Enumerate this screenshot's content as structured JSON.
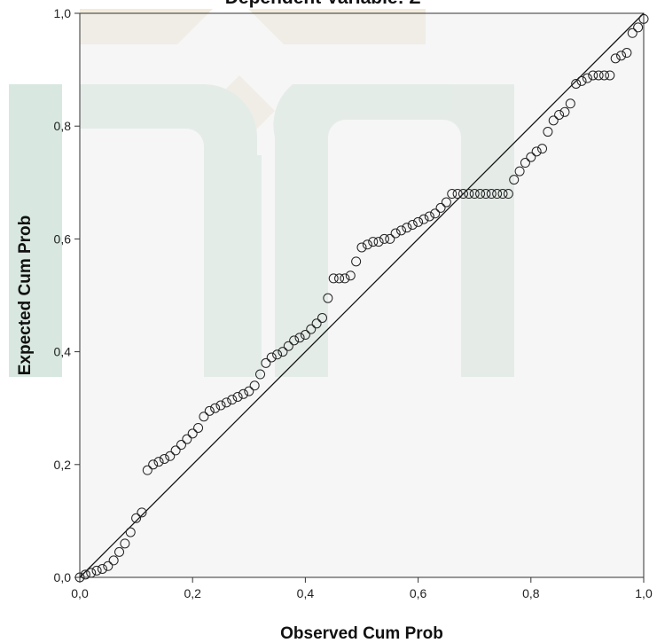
{
  "chart_data": {
    "type": "scatter",
    "title": "Dependent Variable: Z",
    "xlabel": "Observed Cum Prob",
    "ylabel": "Expected Cum Prob",
    "xlim": [
      0,
      1
    ],
    "ylim": [
      0,
      1
    ],
    "x_ticks": [
      "0,0",
      "0,2",
      "0,4",
      "0,6",
      "0,8",
      "1,0"
    ],
    "y_ticks": [
      "0,0",
      "0,2",
      "0,4",
      "0,6",
      "0,8",
      "1,0"
    ],
    "grid": false,
    "legend": "none",
    "reference_line": {
      "from": [
        0,
        0
      ],
      "to": [
        1,
        1
      ]
    },
    "series": [
      {
        "x": [
          0.0,
          0.01,
          0.02,
          0.03,
          0.04,
          0.05,
          0.06,
          0.07,
          0.08,
          0.09,
          0.1,
          0.11,
          0.12,
          0.13,
          0.14,
          0.15,
          0.16,
          0.17,
          0.18,
          0.19,
          0.2,
          0.21,
          0.22,
          0.23,
          0.24,
          0.25,
          0.26,
          0.27,
          0.28,
          0.29,
          0.3,
          0.31,
          0.32,
          0.33,
          0.34,
          0.35,
          0.36,
          0.37,
          0.38,
          0.39,
          0.4,
          0.41,
          0.42,
          0.43,
          0.44,
          0.45,
          0.46,
          0.47,
          0.48,
          0.49,
          0.5,
          0.51,
          0.52,
          0.53,
          0.54,
          0.55,
          0.56,
          0.57,
          0.58,
          0.59,
          0.6,
          0.61,
          0.62,
          0.63,
          0.64,
          0.65,
          0.66,
          0.67,
          0.68,
          0.69,
          0.7,
          0.71,
          0.72,
          0.73,
          0.74,
          0.75,
          0.76,
          0.77,
          0.78,
          0.79,
          0.8,
          0.81,
          0.82,
          0.83,
          0.84,
          0.85,
          0.86,
          0.87,
          0.88,
          0.89,
          0.9,
          0.91,
          0.92,
          0.93,
          0.94,
          0.95,
          0.96,
          0.97,
          0.98,
          0.99,
          1.0
        ],
        "y": [
          0.0,
          0.005,
          0.008,
          0.012,
          0.015,
          0.02,
          0.03,
          0.045,
          0.06,
          0.08,
          0.105,
          0.115,
          0.19,
          0.2,
          0.205,
          0.21,
          0.215,
          0.225,
          0.235,
          0.245,
          0.255,
          0.265,
          0.285,
          0.295,
          0.3,
          0.305,
          0.31,
          0.315,
          0.32,
          0.325,
          0.33,
          0.34,
          0.36,
          0.38,
          0.39,
          0.395,
          0.4,
          0.41,
          0.42,
          0.425,
          0.43,
          0.44,
          0.45,
          0.46,
          0.495,
          0.53,
          0.53,
          0.53,
          0.535,
          0.56,
          0.585,
          0.59,
          0.595,
          0.595,
          0.6,
          0.6,
          0.61,
          0.615,
          0.62,
          0.625,
          0.63,
          0.635,
          0.64,
          0.645,
          0.655,
          0.665,
          0.68,
          0.68,
          0.68,
          0.68,
          0.68,
          0.68,
          0.68,
          0.68,
          0.68,
          0.68,
          0.68,
          0.705,
          0.72,
          0.735,
          0.745,
          0.755,
          0.76,
          0.79,
          0.81,
          0.82,
          0.825,
          0.84,
          0.875,
          0.88,
          0.885,
          0.89,
          0.89,
          0.89,
          0.89,
          0.92,
          0.925,
          0.93,
          0.965,
          0.975,
          0.99
        ]
      }
    ]
  }
}
